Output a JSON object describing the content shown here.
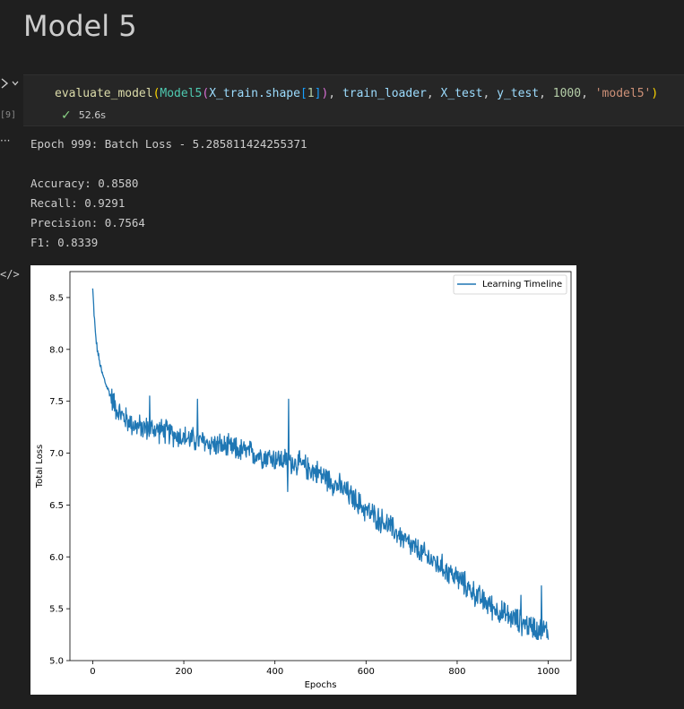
{
  "heading": "Model 5",
  "cell": {
    "execution_count": "[9]",
    "code": {
      "fn": "evaluate_model",
      "open1": "(",
      "cls": "Model5",
      "open2": "(",
      "arg_xtrain": "X_train",
      "dot_shape": ".shape",
      "open3": "[",
      "idx": "1",
      "close3": "]",
      "close2": ")",
      "comma1": ", ",
      "arg_loader": "train_loader",
      "comma2": ", ",
      "arg_xtest": "X_test",
      "comma3": ", ",
      "arg_ytest": "y_test",
      "comma4": ", ",
      "epochs": "1000",
      "comma5": ", ",
      "name": "'model5'",
      "close1": ")"
    },
    "duration": "52.6s"
  },
  "output": {
    "lines": [
      "Epoch 999: Batch Loss - 5.285811424255371",
      "",
      "Accuracy: 0.8580",
      "Recall: 0.9291",
      "Precision: 0.7564",
      "F1: 0.8339"
    ]
  },
  "icons": {
    "run": "run-icon",
    "chevron": "chevron-down-icon",
    "check": "check-icon",
    "more": "ellipsis-icon",
    "code_output": "code-icon"
  },
  "colors": {
    "line": "#1f77b4",
    "success": "#89d185"
  },
  "chart_data": {
    "type": "line",
    "title": "",
    "xlabel": "Epochs",
    "ylabel": "Total Loss",
    "xlim": [
      -50,
      1050
    ],
    "ylim": [
      5.0,
      8.75
    ],
    "xticks": [
      0,
      200,
      400,
      600,
      800,
      1000
    ],
    "yticks": [
      5.0,
      5.5,
      6.0,
      6.5,
      7.0,
      7.5,
      8.0,
      8.5
    ],
    "legend_position": "top-right",
    "series": [
      {
        "name": "Learning Timeline",
        "color": "#1f77b4",
        "trend": {
          "x": [
            0,
            3,
            6,
            10,
            15,
            20,
            30,
            40,
            50,
            60,
            80,
            100,
            150,
            200,
            250,
            300,
            350,
            400,
            450,
            500,
            550,
            600,
            650,
            700,
            750,
            800,
            850,
            900,
            950,
            1000
          ],
          "y": [
            8.58,
            8.35,
            8.15,
            8.0,
            7.88,
            7.78,
            7.65,
            7.55,
            7.45,
            7.38,
            7.3,
            7.25,
            7.22,
            7.15,
            7.1,
            7.05,
            7.0,
            6.95,
            6.9,
            6.8,
            6.65,
            6.45,
            6.3,
            6.1,
            5.95,
            5.8,
            5.6,
            5.45,
            5.35,
            5.28
          ]
        },
        "noise_amplitude": 0.12,
        "spikes": [
          {
            "x": 125,
            "y": 7.55
          },
          {
            "x": 230,
            "y": 7.52
          },
          {
            "x": 430,
            "y": 7.52
          },
          {
            "x": 428,
            "y": 6.63
          },
          {
            "x": 940,
            "y": 5.63
          },
          {
            "x": 985,
            "y": 5.72
          }
        ]
      }
    ]
  }
}
